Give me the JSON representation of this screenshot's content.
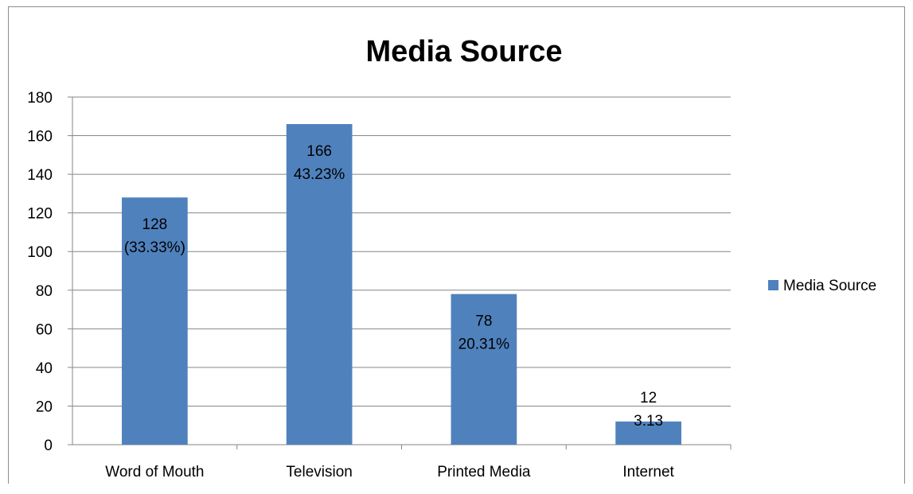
{
  "chart_data": {
    "type": "bar",
    "title": "Media Source",
    "categories": [
      "Word of Mouth",
      "Television",
      "Printed Media",
      "Internet"
    ],
    "series": [
      {
        "name": "Media Source",
        "values": [
          128,
          166,
          78,
          12
        ],
        "color": "#4f81bd",
        "data_labels": [
          [
            "128",
            "(33.33%)"
          ],
          [
            "166",
            "43.23%"
          ],
          [
            "78",
            "20.31%"
          ],
          [
            "12",
            "3.13"
          ]
        ]
      }
    ],
    "xlabel": "",
    "ylabel": "",
    "ylim": [
      0,
      180
    ],
    "yticks": [
      "0",
      "20",
      "40",
      "60",
      "80",
      "100",
      "120",
      "140",
      "160",
      "180"
    ],
    "grid": true,
    "legend": "right"
  }
}
